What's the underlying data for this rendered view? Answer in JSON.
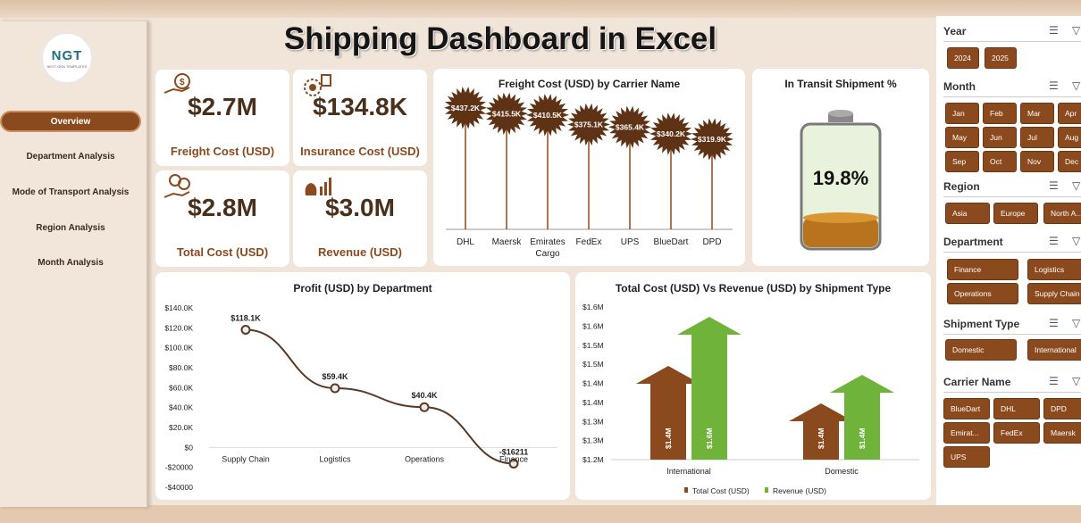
{
  "title": "Shipping Dashboard in Excel",
  "logo": {
    "mark": "NGT",
    "sub": "NEXT GEN TEMPLATES"
  },
  "nav": [
    {
      "label": "Overview",
      "active": true
    },
    {
      "label": "Department Analysis"
    },
    {
      "label": "Mode of Transport Analysis"
    },
    {
      "label": "Region Analysis"
    },
    {
      "label": "Month Analysis"
    }
  ],
  "kpis": [
    {
      "value": "$2.7M",
      "label": "Freight Cost (USD)",
      "icon": "money-hand-icon"
    },
    {
      "value": "$134.8K",
      "label": "Insurance Cost (USD)",
      "icon": "coins-gear-icon"
    },
    {
      "value": "$2.8M",
      "label": "Total Cost (USD)",
      "icon": "hand-coins-icon"
    },
    {
      "value": "$3.0M",
      "label": "Revenue (USD)",
      "icon": "moneybag-chart-icon"
    }
  ],
  "freight_chart": {
    "title": "Freight Cost (USD) by Carrier Name"
  },
  "transit": {
    "title": "In Transit Shipment %",
    "value": "19.8%",
    "fraction": 0.198
  },
  "profit_chart": {
    "title": "Profit (USD) by Department"
  },
  "cost_rev_chart": {
    "title": "Total Cost (USD) Vs Revenue (USD) by Shipment Type",
    "legend": [
      "Total Cost (USD)",
      "Revenue (USD)"
    ]
  },
  "colors": {
    "brown": "#8a4a1e",
    "green": "#6fb33a",
    "dark_brown": "#4a2f1a"
  },
  "chart_data": [
    {
      "type": "bar",
      "title": "Freight Cost (USD) by Carrier Name",
      "categories": [
        "DHL",
        "Maersk",
        "Emirates Cargo",
        "FedEx",
        "UPS",
        "BlueDart",
        "DPD"
      ],
      "values": [
        437.2,
        415.5,
        410.5,
        375.1,
        365.4,
        340.2,
        319.9
      ],
      "labels": [
        "$437.2K",
        "$415.5K",
        "$410.5K",
        "$375.1K",
        "$365.4K",
        "$340.2K",
        "$319.9K"
      ],
      "unit": "K USD"
    },
    {
      "type": "line",
      "title": "Profit (USD) by Department",
      "categories": [
        "Supply Chain",
        "Logistics",
        "Operations",
        "Finance"
      ],
      "values": [
        118100,
        59400,
        40400,
        -16211
      ],
      "labels": [
        "$118.1K",
        "$59.4K",
        "$40.4K",
        "-$16211"
      ],
      "ylim": [
        -40000,
        140000
      ],
      "yticks": [
        "$140.0K",
        "$120.0K",
        "$100.0K",
        "$80.0K",
        "$60.0K",
        "$40.0K",
        "$20.0K",
        "$0",
        "-$20000",
        "-$40000"
      ]
    },
    {
      "type": "bar",
      "title": "Total Cost (USD) Vs Revenue (USD) by Shipment Type",
      "categories": [
        "International",
        "Domestic"
      ],
      "series": [
        {
          "name": "Total Cost (USD)",
          "values": [
            1.4,
            1.4
          ],
          "labels": [
            "$1.4M",
            "$1.4M"
          ]
        },
        {
          "name": "Revenue (USD)",
          "values": [
            1.6,
            1.4
          ],
          "labels": [
            "$1.6M",
            "$1.4M"
          ]
        }
      ],
      "yticks": [
        "$1.6M",
        "$1.6M",
        "$1.5M",
        "$1.5M",
        "$1.4M",
        "$1.4M",
        "$1.3M",
        "$1.3M",
        "$1.2M"
      ]
    }
  ],
  "slicers": [
    {
      "title": "Year",
      "items": [
        "2024",
        "2025"
      ]
    },
    {
      "title": "Month",
      "items": [
        "Jan",
        "Feb",
        "Mar",
        "Apr",
        "May",
        "Jun",
        "Jul",
        "Aug",
        "Sep",
        "Oct",
        "Nov",
        "Dec"
      ]
    },
    {
      "title": "Region",
      "items": [
        "Asia",
        "Europe",
        "North A..."
      ]
    },
    {
      "title": "Department",
      "items": [
        "Finance",
        "Logistics",
        "Operations",
        "Supply Chain"
      ]
    },
    {
      "title": "Shipment Type",
      "items": [
        "Domestic",
        "International"
      ]
    },
    {
      "title": "Carrier Name",
      "items": [
        "BlueDart",
        "DHL",
        "DPD",
        "Emirat...",
        "FedEx",
        "Maersk",
        "UPS"
      ]
    }
  ]
}
